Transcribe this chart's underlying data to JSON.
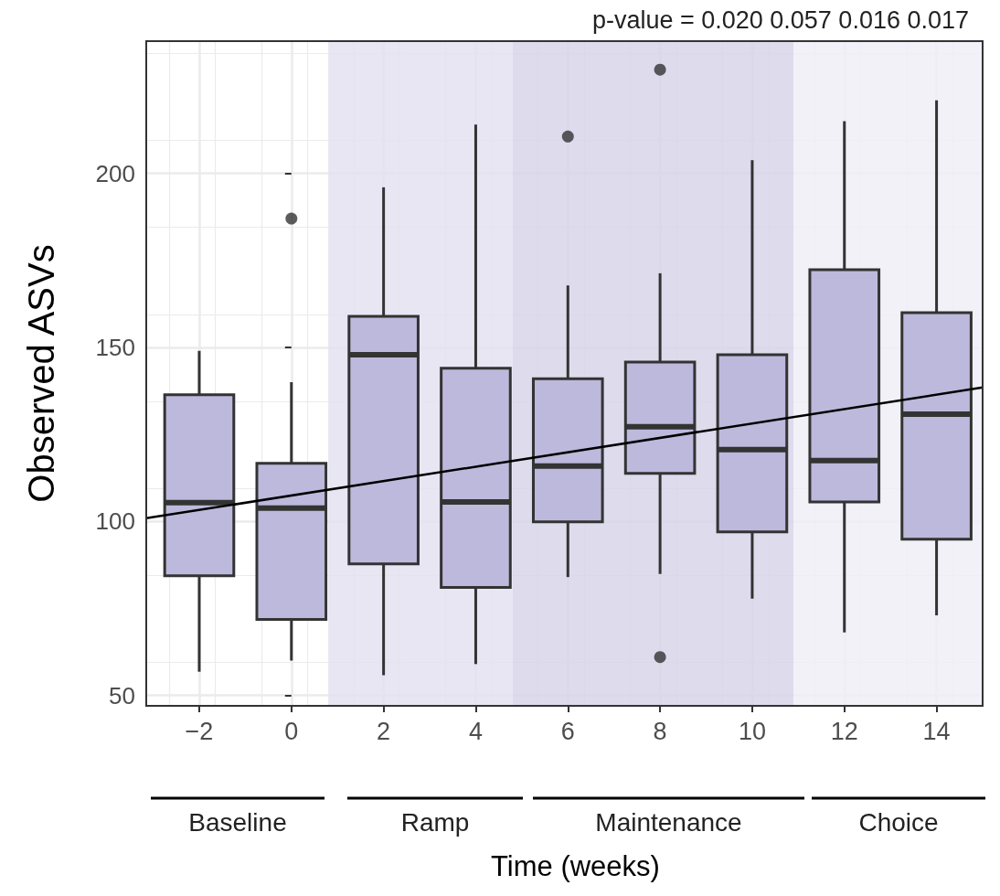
{
  "chart_data": {
    "type": "box",
    "xlabel": "Time (weeks)",
    "ylabel": "Observed ASVs",
    "x": [
      -2,
      0,
      2,
      4,
      6,
      8,
      10,
      12,
      14
    ],
    "xlim": [
      -3.15,
      15
    ],
    "xticks": [
      {
        "value": -2,
        "label": "−2"
      },
      0,
      2,
      4,
      6,
      8,
      10,
      12,
      14
    ],
    "ylim": [
      47,
      238
    ],
    "yticks": [
      50,
      100,
      150,
      200
    ],
    "grid": true,
    "marker": "none",
    "series": [
      {
        "color": "#bdb9dc",
        "boxes": [
          {
            "low": 56.8,
            "q1": 84.4,
            "median": 105.4,
            "q3": 136.4,
            "high": 149
          },
          {
            "low": 60,
            "q1": 71.8,
            "median": 103.8,
            "q3": 116.7,
            "high": 140,
            "outliers": [
              187
            ]
          },
          {
            "low": 55.8,
            "q1": 87.8,
            "median": 147.9,
            "q3": 158.9,
            "high": 196
          },
          {
            "low": 59,
            "q1": 81,
            "median": 105.6,
            "q3": 144,
            "high": 214
          },
          {
            "low": 84,
            "q1": 99.9,
            "median": 115.9,
            "q3": 141,
            "high": 167.8,
            "outliers": [
              210.6
            ]
          },
          {
            "low": 84.9,
            "q1": 113.8,
            "median": 127.2,
            "q3": 145.8,
            "high": 171.3,
            "outliers": [
              229.8,
              61
            ]
          },
          {
            "low": 77.8,
            "q1": 97,
            "median": 120.6,
            "q3": 147.9,
            "high": 203.8
          },
          {
            "low": 68.1,
            "q1": 105.6,
            "median": 117.5,
            "q3": 172.3,
            "high": 215
          },
          {
            "low": 73,
            "q1": 94.9,
            "median": 130.8,
            "q3": 160,
            "high": 221
          }
        ]
      },
      {
        "type": "line",
        "color": "#000000",
        "x": [
          -3.15,
          15
        ],
        "values": [
          100.9,
          138.5
        ]
      }
    ],
    "bands": [
      {
        "axis": "x",
        "from": 0.8,
        "to": 4.8,
        "color": "#e4e2f1"
      },
      {
        "axis": "x",
        "from": 4.8,
        "to": 10.9,
        "color": "#d7d5e9"
      },
      {
        "axis": "x",
        "from": 10.9,
        "to": 15,
        "color": "#efeef6"
      }
    ],
    "annotations": [
      "p-value = 0.020 0.057 0.016 0.017",
      "Baseline",
      "Ramp",
      "Maintenance",
      "Choice"
    ]
  }
}
